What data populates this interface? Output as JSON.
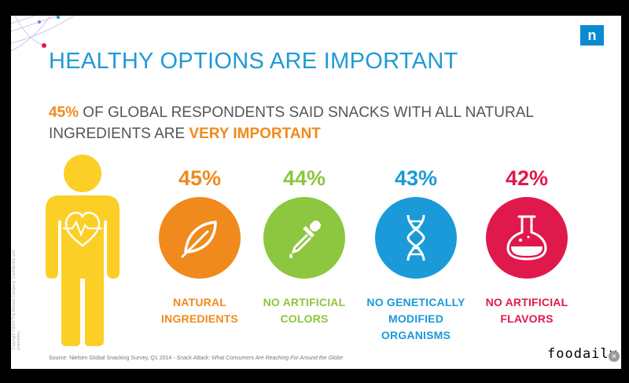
{
  "slide": {
    "title": "HEALTHY OPTIONS ARE IMPORTANT",
    "subtitle_pct": "45%",
    "subtitle_mid": " OF GLOBAL RESPONDENTS SAID SNACKS WITH ALL NATURAL INGREDIENTS ARE ",
    "subtitle_emph": "VERY IMPORTANT",
    "logo": "n",
    "vertical_copyright": "Copyright ©2014 The Nielsen Company. Confidential and proprietary.",
    "source_prefix": "Source: Nielsen Global Snacking Survey, Q1 2014 - ",
    "source_italic": "Snack Attack: What Consumers Are Reaching For Around the Globe"
  },
  "chart_data": {
    "type": "bar",
    "categories": [
      "NATURAL INGREDIENTS",
      "NO ARTIFICIAL COLORS",
      "NO GENETICALLY MODIFIED ORGANISMS",
      "NO ARTIFICIAL FLAVORS"
    ],
    "values": [
      45,
      44,
      43,
      42
    ],
    "value_labels": [
      "45%",
      "44%",
      "43%",
      "42%"
    ],
    "label_lines": [
      [
        "NATURAL",
        "INGREDIENTS"
      ],
      [
        "NO ARTIFICIAL",
        "COLORS"
      ],
      [
        "NO GENETICALLY",
        "MODIFIED",
        "ORGANISMS"
      ],
      [
        "NO ARTIFICIAL",
        "FLAVORS"
      ]
    ],
    "icons": [
      "leaf-icon",
      "dropper-icon",
      "dna-icon",
      "flask-icon"
    ],
    "colors": [
      "#f08a1d",
      "#8dc63f",
      "#1a9ad9",
      "#e0194c"
    ]
  },
  "watermark": "foodaily",
  "colors": {
    "title": "#1f9ad6",
    "accent": "#f08a1d",
    "person": "#fbcf25"
  }
}
